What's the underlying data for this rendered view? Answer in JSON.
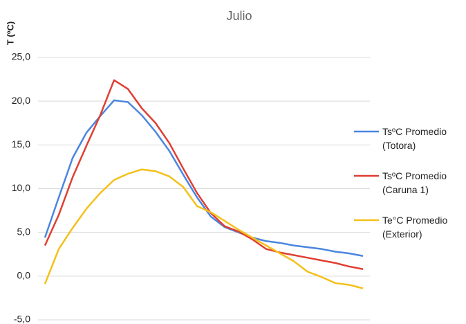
{
  "chart_data": {
    "type": "line",
    "title": "Julio",
    "y_label": "T (ºC)",
    "categories": [
      null,
      null,
      null,
      null,
      null,
      null,
      null,
      null,
      null,
      null,
      null,
      null,
      null,
      null,
      null,
      null,
      null,
      null,
      null,
      null,
      null,
      null,
      null,
      null
    ],
    "series": [
      {
        "name": "TsºC Promedio (Totora)",
        "color": "#4a86e0",
        "values": [
          4.4,
          9.0,
          13.5,
          16.4,
          18.3,
          20.1,
          19.9,
          18.4,
          16.5,
          14.3,
          11.6,
          9.0,
          6.8,
          5.6,
          5.0,
          4.4,
          4.0,
          3.8,
          3.5,
          3.3,
          3.1,
          2.8,
          2.6,
          2.3
        ]
      },
      {
        "name": "TsºC Promedio (Caruna 1)",
        "color": "#df3f33",
        "values": [
          3.5,
          7.0,
          11.3,
          14.9,
          18.4,
          22.4,
          21.4,
          19.2,
          17.5,
          15.2,
          12.3,
          9.5,
          7.2,
          5.7,
          5.1,
          4.2,
          3.1,
          2.7,
          2.4,
          2.1,
          1.8,
          1.5,
          1.1,
          0.8
        ]
      },
      {
        "name": "Te°C Promedio (Exterior)",
        "color": "#f4c01a",
        "values": [
          -0.9,
          3.1,
          5.5,
          7.7,
          9.5,
          11.0,
          11.7,
          12.2,
          12.0,
          11.4,
          10.2,
          8.0,
          7.3,
          6.3,
          5.3,
          4.4,
          3.5,
          2.6,
          1.7,
          0.5,
          -0.1,
          -0.8,
          -1.0,
          -1.4
        ]
      }
    ],
    "ylim": [
      -5,
      25
    ],
    "yticks": [
      {
        "value": -5,
        "label": "-5,0"
      },
      {
        "value": 0,
        "label": "0,0"
      },
      {
        "value": 5,
        "label": "5,0"
      },
      {
        "value": 10,
        "label": "10,0"
      },
      {
        "value": 15,
        "label": "15,0"
      },
      {
        "value": 20,
        "label": "20,0"
      },
      {
        "value": 25,
        "label": "25,0"
      }
    ],
    "grid": true,
    "legend": "right"
  }
}
